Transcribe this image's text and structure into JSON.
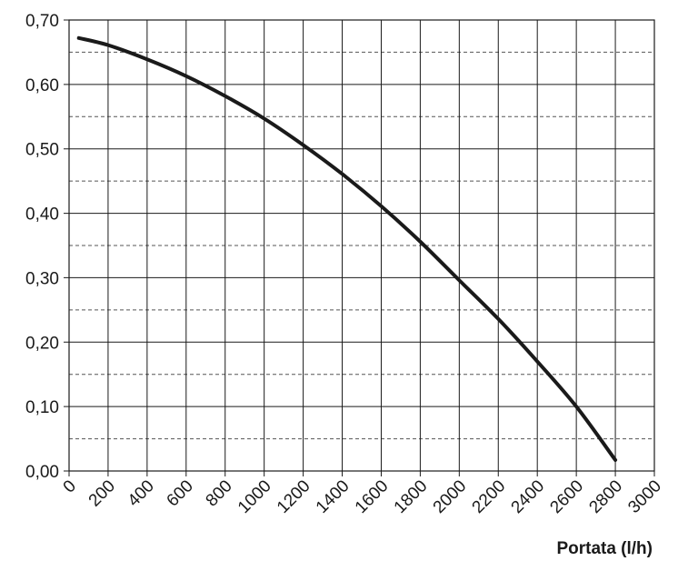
{
  "chart_data": {
    "type": "line",
    "title": "",
    "xlabel": "Portata (l/h)",
    "ylabel": "",
    "xlim": [
      0,
      3000
    ],
    "ylim": [
      0,
      0.7
    ],
    "x_ticks": [
      0,
      200,
      400,
      600,
      800,
      1000,
      1200,
      1400,
      1600,
      1800,
      2000,
      2200,
      2400,
      2600,
      2800,
      3000
    ],
    "x_tick_labels": [
      "0",
      "200",
      "400",
      "600",
      "800",
      "1000",
      "1200",
      "1400",
      "1600",
      "1800",
      "2000",
      "2200",
      "2400",
      "2600",
      "2800",
      "3000"
    ],
    "y_ticks": [
      0,
      0.1,
      0.2,
      0.3,
      0.4,
      0.5,
      0.6,
      0.7
    ],
    "y_tick_labels": [
      "0,00",
      "0,10",
      "0,20",
      "0,30",
      "0,40",
      "0,50",
      "0,60",
      "0,70"
    ],
    "y_minor_ticks": [
      0.05,
      0.15,
      0.25,
      0.35,
      0.45,
      0.55,
      0.65
    ],
    "grid": true,
    "minor_grid_style": "dashed",
    "line_color": "#1a1a1a",
    "series": [
      {
        "x": [
          50,
          200,
          400,
          600,
          800,
          1000,
          1200,
          1400,
          1600,
          1800,
          2000,
          2200,
          2400,
          2600,
          2800
        ],
        "values": [
          0.672,
          0.661,
          0.639,
          0.613,
          0.582,
          0.547,
          0.506,
          0.461,
          0.411,
          0.356,
          0.296,
          0.236,
          0.17,
          0.1,
          0.017
        ]
      }
    ]
  }
}
